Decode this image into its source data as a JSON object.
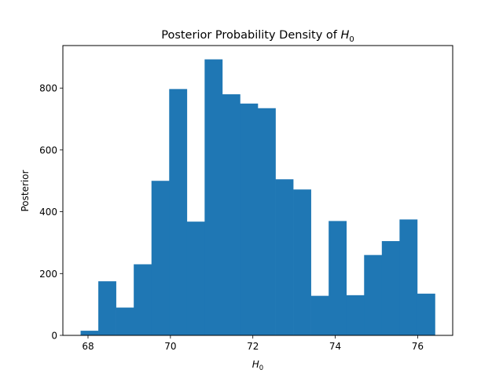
{
  "chart_data": {
    "type": "bar",
    "title_main": "Posterior Probability Density of ",
    "title_math_base": "H",
    "title_math_sub": "0",
    "xlabel_base": "H",
    "xlabel_sub": "0",
    "ylabel": "Posterior",
    "bin_edges": [
      67.82,
      68.25,
      68.68,
      69.11,
      69.54,
      69.97,
      70.4,
      70.83,
      71.26,
      71.69,
      72.12,
      72.55,
      72.98,
      73.41,
      73.84,
      74.27,
      74.7,
      75.13,
      75.56,
      75.99,
      76.42
    ],
    "values": [
      15,
      175,
      90,
      230,
      500,
      797,
      368,
      893,
      780,
      750,
      735,
      505,
      472,
      128,
      370,
      130,
      260,
      305,
      375,
      135
    ],
    "xlim": [
      67.39,
      76.85
    ],
    "ylim": [
      0,
      937.65
    ],
    "xticks": [
      68,
      70,
      72,
      74,
      76
    ],
    "xtick_labels": [
      "68",
      "70",
      "72",
      "74",
      "76"
    ],
    "yticks": [
      0,
      200,
      400,
      600,
      800
    ],
    "ytick_labels": [
      "0",
      "200",
      "400",
      "600",
      "800"
    ],
    "bar_color": "#1f77b4",
    "grid": false,
    "legend": "none"
  }
}
